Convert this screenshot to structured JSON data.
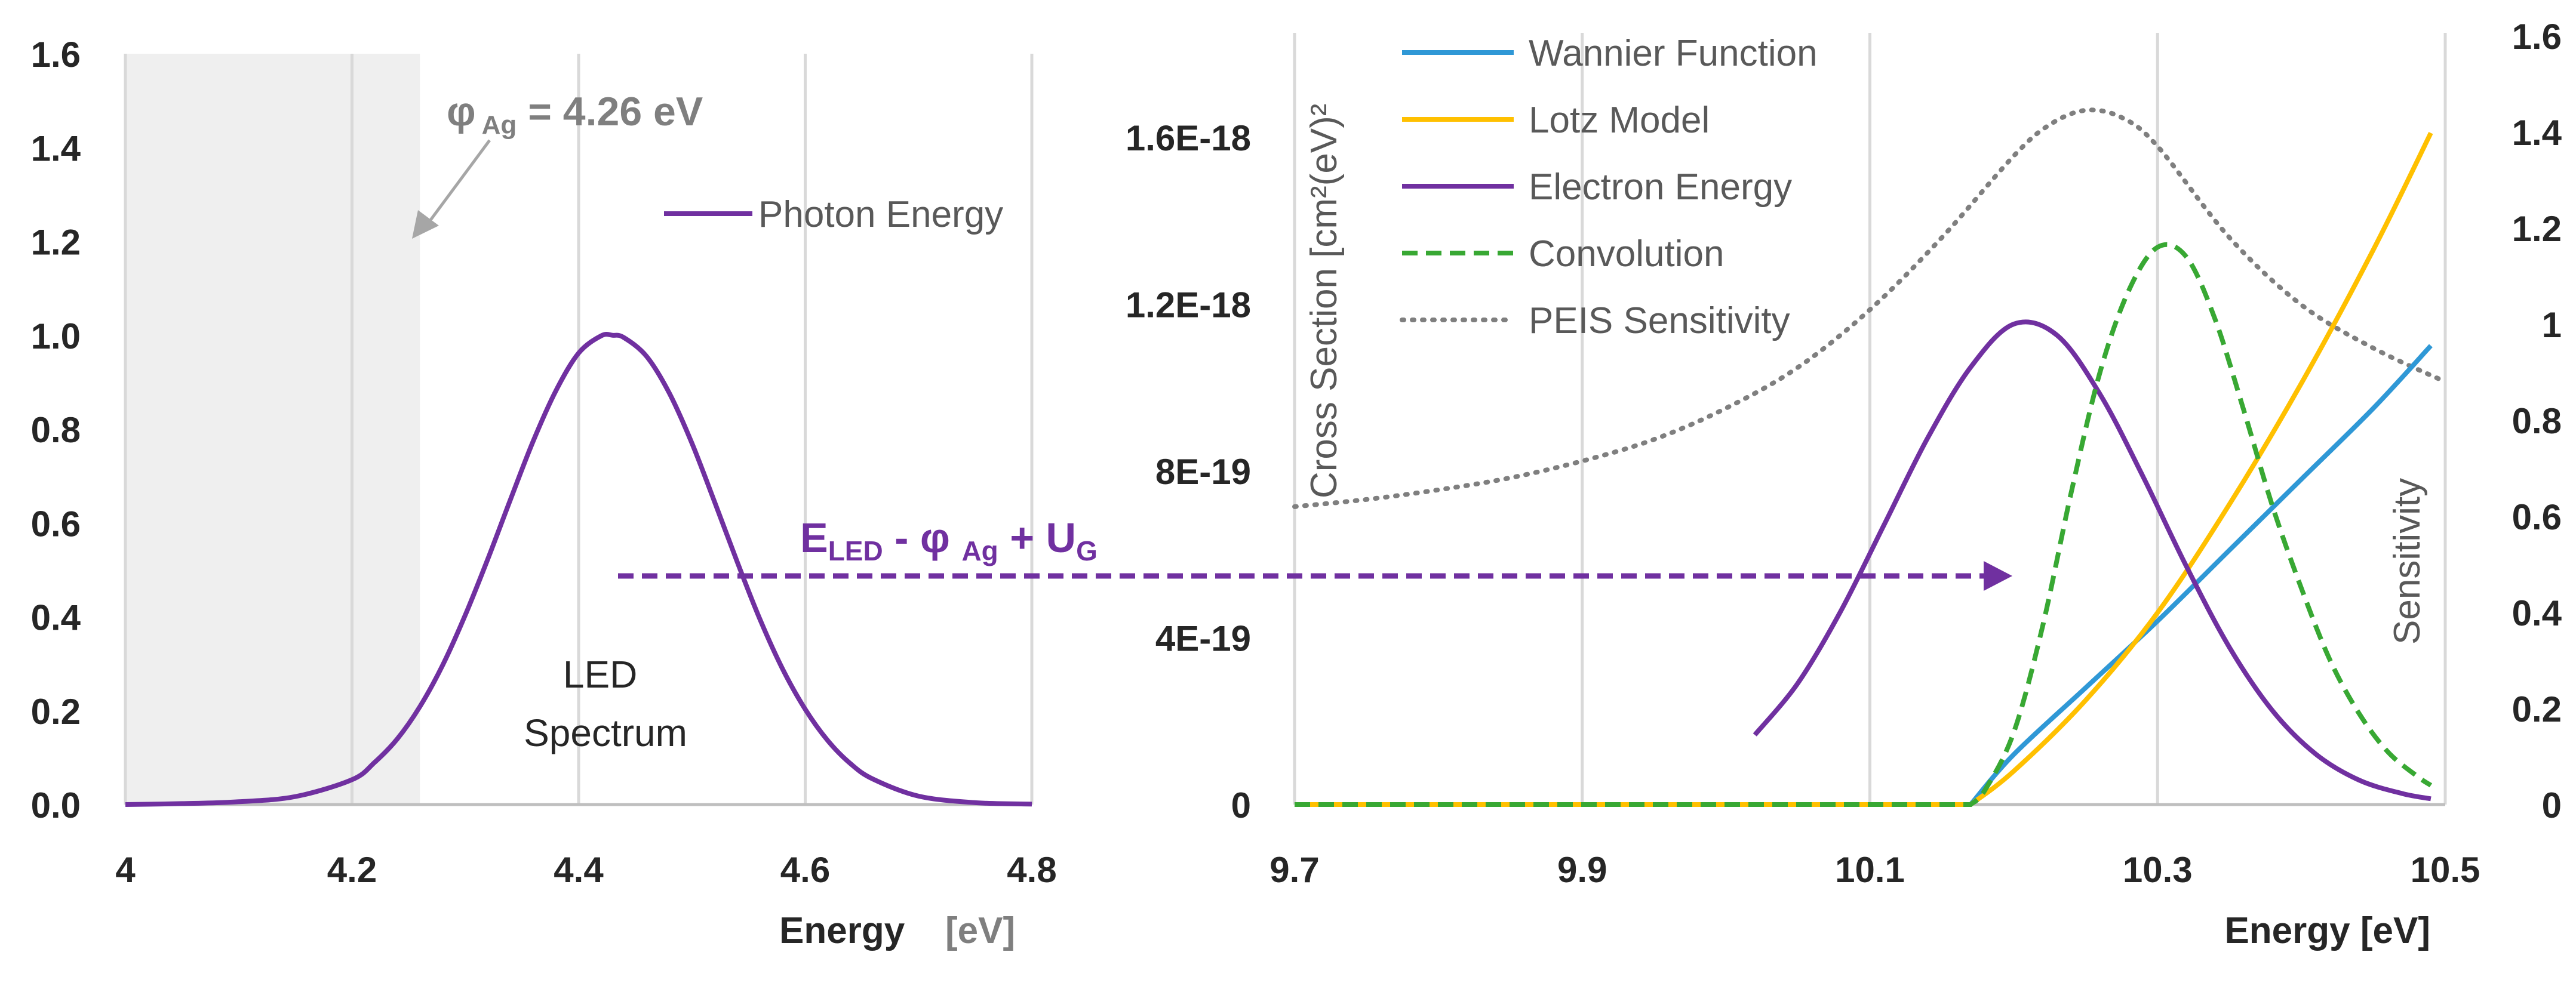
{
  "colors": {
    "photon": "#7030a0",
    "electron": "#7030a0",
    "wannier": "#2f98d6",
    "lotz": "#ffc000",
    "convolution": "#38a833",
    "peis": "#7f7f7f",
    "shade": "#efefef",
    "arrow": "#7030a0",
    "pointer": "#a6a6a6"
  },
  "chart_data": [
    {
      "type": "line",
      "panel": "left",
      "xlabel": "Energy",
      "xlabel_unit": "[eV]",
      "ylabel": "",
      "xlim": [
        4.0,
        4.8
      ],
      "ylim": [
        0.0,
        1.6
      ],
      "x_ticks": [
        "4",
        "4.2",
        "4.4",
        "4.6",
        "4.8"
      ],
      "y_ticks": [
        "0.0",
        "0.2",
        "0.4",
        "0.6",
        "0.8",
        "1.0",
        "1.2",
        "1.4",
        "1.6"
      ],
      "shaded_region": [
        4.0,
        4.26
      ],
      "series": [
        {
          "name": "Photon Energy",
          "style": "solid",
          "x": [
            4.0,
            4.05,
            4.1,
            4.15,
            4.2,
            4.22,
            4.24,
            4.26,
            4.28,
            4.3,
            4.32,
            4.34,
            4.36,
            4.38,
            4.4,
            4.42,
            4.43,
            4.44,
            4.46,
            4.48,
            4.5,
            4.52,
            4.54,
            4.56,
            4.58,
            4.6,
            4.62,
            4.64,
            4.66,
            4.7,
            4.75,
            4.8
          ],
          "values": [
            0.0,
            0.002,
            0.006,
            0.017,
            0.053,
            0.09,
            0.14,
            0.209,
            0.297,
            0.404,
            0.524,
            0.651,
            0.775,
            0.882,
            0.962,
            0.999,
            1.0,
            0.995,
            0.955,
            0.877,
            0.77,
            0.645,
            0.517,
            0.395,
            0.289,
            0.203,
            0.136,
            0.087,
            0.054,
            0.018,
            0.004,
            0.001
          ]
        }
      ],
      "annotations": [
        {
          "name": "work-function",
          "text": "φ",
          "subscript": "Ag",
          "suffix": " = 4.26 eV"
        },
        {
          "name": "led-spectrum",
          "lines": [
            "LED",
            "Spectrum"
          ]
        }
      ]
    },
    {
      "type": "line",
      "panel": "right",
      "xlabel": "Energy [eV]",
      "ylabel": "Cross Section [cm²(eV)²",
      "ylabel_right": "Sensitivity",
      "xlim": [
        9.7,
        10.5
      ],
      "ylim": [
        0,
        1.8e-18
      ],
      "ylim_right": [
        0,
        1.6
      ],
      "x_ticks": [
        "9.7",
        "9.9",
        "10.1",
        "10.3",
        "10.5"
      ],
      "y_ticks": [
        "0",
        "4E-19",
        "8E-19",
        "1.2E-18",
        "1.6E-18"
      ],
      "y_ticks_right": [
        "0",
        "0.2",
        "0.4",
        "0.6",
        "0.8",
        "1",
        "1.2",
        "1.4",
        "1.6"
      ],
      "series": [
        {
          "name": "Wannier Function",
          "style": "solid",
          "axis": "left",
          "x": [
            9.7,
            10.17,
            10.2,
            10.25,
            10.3,
            10.35,
            10.4,
            10.45,
            10.49
          ],
          "values": [
            0,
            0,
            1.2e-19,
            2.8e-19,
            4.4e-19,
            6.1e-19,
            7.8e-19,
            9.5e-19,
            1.1e-18
          ]
        },
        {
          "name": "Lotz Model",
          "style": "solid",
          "axis": "left",
          "x": [
            9.7,
            10.17,
            10.2,
            10.25,
            10.3,
            10.35,
            10.4,
            10.45,
            10.49
          ],
          "values": [
            0,
            0,
            8e-20,
            2.5e-19,
            4.6e-19,
            7.2e-19,
            1.01e-18,
            1.33e-18,
            1.61e-18
          ]
        },
        {
          "name": "Electron Energy",
          "style": "solid",
          "axis": "right",
          "x": [
            10.02,
            10.05,
            10.08,
            10.11,
            10.14,
            10.17,
            10.2,
            10.23,
            10.26,
            10.29,
            10.32,
            10.35,
            10.38,
            10.41,
            10.44,
            10.47,
            10.49
          ],
          "values": [
            0.145,
            0.253,
            0.404,
            0.583,
            0.762,
            0.91,
            1.0,
            0.977,
            0.854,
            0.682,
            0.496,
            0.327,
            0.195,
            0.105,
            0.051,
            0.023,
            0.012
          ]
        },
        {
          "name": "Convolution",
          "style": "dashed",
          "axis": "right",
          "x": [
            9.7,
            10.17,
            10.18,
            10.2,
            10.22,
            10.24,
            10.26,
            10.28,
            10.3,
            10.32,
            10.34,
            10.36,
            10.38,
            10.4,
            10.42,
            10.44,
            10.46,
            10.48,
            10.49
          ],
          "values": [
            0,
            0,
            0.03,
            0.15,
            0.37,
            0.65,
            0.9,
            1.07,
            1.16,
            1.14,
            1.01,
            0.82,
            0.62,
            0.45,
            0.3,
            0.19,
            0.11,
            0.06,
            0.04
          ]
        },
        {
          "name": "PEIS Sensitivity",
          "style": "dotted",
          "axis": "right",
          "x": [
            9.7,
            9.75,
            9.8,
            9.85,
            9.9,
            9.95,
            10.0,
            10.05,
            10.1,
            10.15,
            10.2,
            10.225,
            10.25,
            10.275,
            10.3,
            10.35,
            10.4,
            10.45,
            10.5
          ],
          "values": [
            0.62,
            0.635,
            0.655,
            0.68,
            0.715,
            0.76,
            0.825,
            0.91,
            1.03,
            1.18,
            1.35,
            1.415,
            1.445,
            1.43,
            1.37,
            1.18,
            1.04,
            0.95,
            0.88
          ]
        }
      ],
      "annotations": [
        {
          "name": "energy-shift",
          "text": "E",
          "subscript": "LED",
          "middle": " - φ ",
          "subscript2": "Ag",
          "suffix": " + U",
          "subscript3": "G"
        }
      ]
    }
  ]
}
